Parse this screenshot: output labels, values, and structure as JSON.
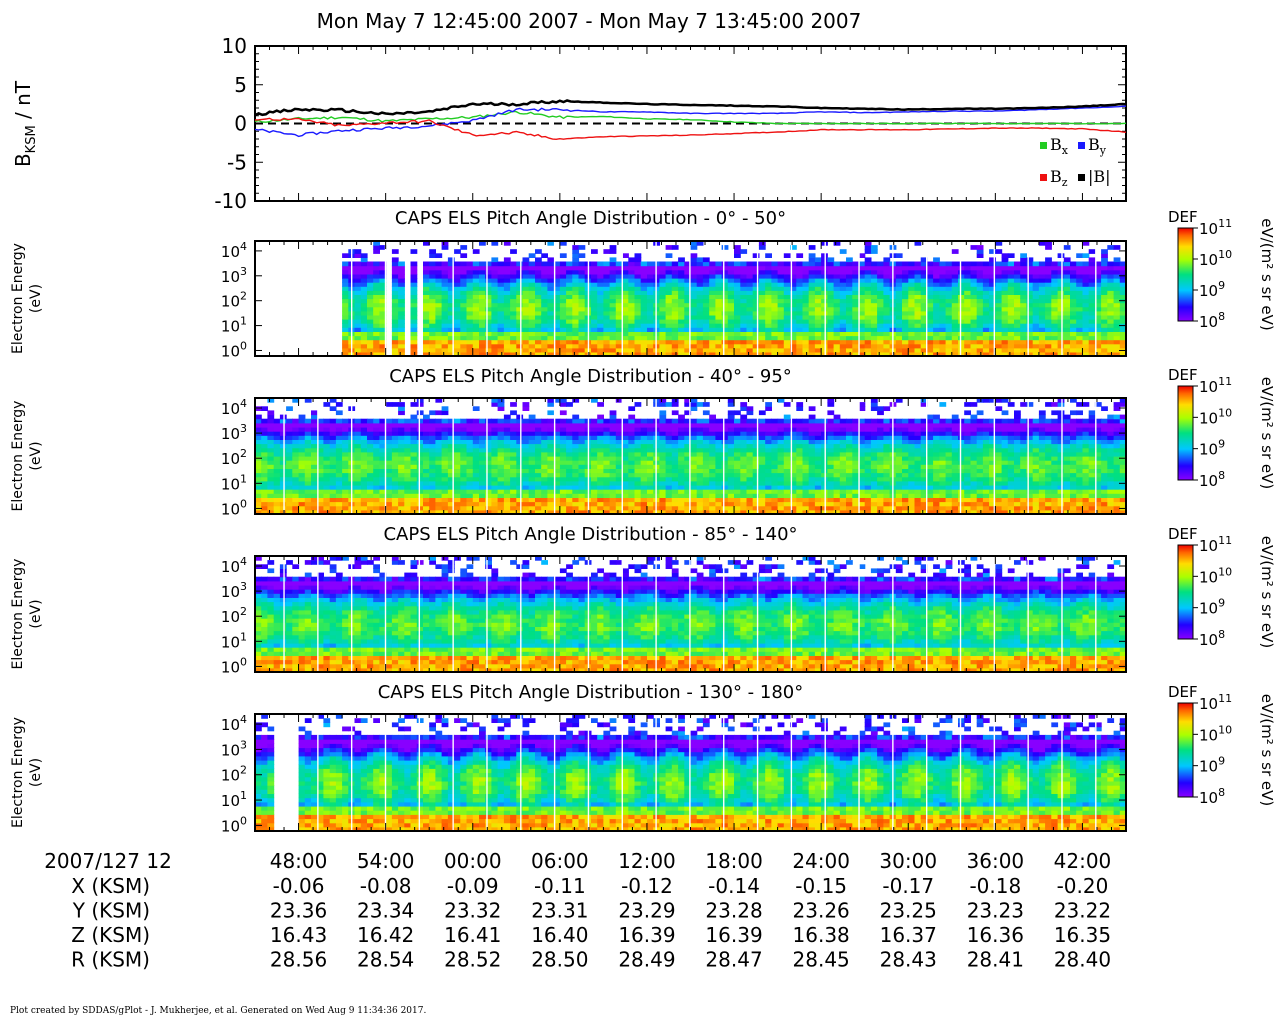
{
  "title": "Mon May 7 12:45:00 2007 - Mon May 7 13:45:00 2007",
  "footer": "Plot created by SDDAS/gPlot - J. Mukherjee, et al.  Generated on Wed Aug 9 11:34:36 2017.",
  "chart_data": [
    {
      "type": "line",
      "ylabel": {
        "main": "B",
        "sub": "KSM",
        "unit": " / nT"
      },
      "ylim": [
        -10,
        10
      ],
      "yticks": [
        "10",
        "5",
        "0",
        "-5",
        "-10"
      ],
      "x_minutes": [
        0,
        3,
        6,
        9,
        12,
        15,
        18,
        21,
        24,
        27,
        30,
        33,
        36,
        39,
        42,
        45,
        48,
        51,
        54,
        57,
        60
      ],
      "series": [
        {
          "name": "Bx",
          "color": "#22cc22",
          "values": [
            0.2,
            0.6,
            0.8,
            0.3,
            0.6,
            0.8,
            1.5,
            0.8,
            0.9,
            0.6,
            0.5,
            0.2,
            0.0,
            0.0,
            0.0,
            0.0,
            0.0,
            0.0,
            0.0,
            0.0,
            0.0
          ]
        },
        {
          "name": "By",
          "color": "#1a1aff",
          "values": [
            -0.8,
            -1.5,
            -0.9,
            -0.6,
            -0.3,
            0.4,
            1.8,
            1.8,
            1.5,
            1.5,
            1.3,
            1.3,
            1.3,
            1.5,
            1.4,
            1.5,
            1.6,
            1.6,
            1.8,
            2.0,
            2.2
          ]
        },
        {
          "name": "Bz",
          "color": "#ee1111",
          "values": [
            0.6,
            0.5,
            -0.3,
            0.1,
            0.3,
            -1.5,
            -1.2,
            -2.0,
            -1.7,
            -1.6,
            -1.5,
            -1.3,
            -1.1,
            -0.8,
            -0.8,
            -0.8,
            -0.7,
            -0.6,
            -0.6,
            -0.7,
            -1.1
          ]
        },
        {
          "name": "|B|",
          "color": "#000000",
          "values": [
            1.2,
            1.8,
            1.7,
            1.2,
            1.5,
            2.5,
            2.5,
            2.9,
            2.7,
            2.5,
            2.4,
            2.3,
            2.2,
            2.0,
            1.9,
            1.8,
            1.9,
            1.9,
            2.0,
            2.2,
            2.5
          ]
        }
      ],
      "legend": [
        {
          "label": "B",
          "sub": "x",
          "color": "#22cc22"
        },
        {
          "label": "B",
          "sub": "y",
          "color": "#1a1aff"
        },
        {
          "label": "B",
          "sub": "z",
          "color": "#ee1111"
        },
        {
          "label": "|B|",
          "sub": "",
          "color": "#000000"
        }
      ],
      "zero_line": "dashed"
    },
    {
      "type": "heatmap",
      "title": "CAPS ELS Pitch Angle Distribution - 0° - 50°",
      "ylabel": [
        "Electron Energy",
        "(eV)"
      ],
      "ylim": [
        0.6,
        25000
      ],
      "yscale": "log",
      "zlabel": "DEF",
      "zunit": "eV/(m² s sr eV)",
      "zlim": [
        100000000.0,
        100000000000.0
      ],
      "profile": "field-aligned"
    },
    {
      "type": "heatmap",
      "title": "CAPS ELS Pitch Angle Distribution - 40° - 95°",
      "ylabel": [
        "Electron Energy",
        "(eV)"
      ],
      "ylim": [
        0.6,
        25000
      ],
      "yscale": "log",
      "zlabel": "DEF",
      "zunit": "eV/(m² s sr eV)",
      "zlim": [
        100000000.0,
        100000000000.0
      ],
      "profile": "perpendicular"
    },
    {
      "type": "heatmap",
      "title": "CAPS ELS Pitch Angle Distribution - 85° - 140°",
      "ylabel": [
        "Electron Energy",
        "(eV)"
      ],
      "ylim": [
        0.6,
        25000
      ],
      "yscale": "log",
      "zlabel": "DEF",
      "zunit": "eV/(m² s sr eV)",
      "zlim": [
        100000000.0,
        100000000000.0
      ],
      "profile": "perpendicular"
    },
    {
      "type": "heatmap",
      "title": "CAPS ELS Pitch Angle Distribution - 130° - 180°",
      "ylabel": [
        "Electron Energy",
        "(eV)"
      ],
      "ylim": [
        0.6,
        25000
      ],
      "yscale": "log",
      "zlabel": "DEF",
      "zunit": "eV/(m² s sr eV)",
      "zlim": [
        100000000.0,
        100000000000.0
      ],
      "profile": "anti-field-aligned"
    }
  ],
  "energy_ticks": [
    {
      "base": "10",
      "exp": "4",
      "value": 10000
    },
    {
      "base": "10",
      "exp": "3",
      "value": 1000
    },
    {
      "base": "10",
      "exp": "2",
      "value": 100
    },
    {
      "base": "10",
      "exp": "1",
      "value": 10
    },
    {
      "base": "10",
      "exp": "0",
      "value": 1
    }
  ],
  "colorbar_ticks": [
    {
      "base": "10",
      "exp": "11",
      "value": 100000000000.0
    },
    {
      "base": "10",
      "exp": "10",
      "value": 10000000000.0
    },
    {
      "base": "10",
      "exp": "9",
      "value": 1000000000.0
    },
    {
      "base": "10",
      "exp": "8",
      "value": 100000000.0
    }
  ],
  "time_axis": {
    "start_label": "2007/127 12",
    "tick_minutes": [
      3,
      9,
      15,
      21,
      27,
      33,
      39,
      45,
      51,
      57
    ],
    "tick_labels": [
      "48:00",
      "54:00",
      "00:00",
      "06:00",
      "12:00",
      "18:00",
      "24:00",
      "30:00",
      "36:00",
      "42:00"
    ],
    "span_minutes": 60
  },
  "ephemeris": [
    {
      "label": "X (KSM)",
      "values": [
        "-0.06",
        "-0.08",
        "-0.09",
        "-0.11",
        "-0.12",
        "-0.14",
        "-0.15",
        "-0.17",
        "-0.18",
        "-0.20"
      ]
    },
    {
      "label": "Y (KSM)",
      "values": [
        "23.36",
        "23.34",
        "23.32",
        "23.31",
        "23.29",
        "23.28",
        "23.26",
        "23.25",
        "23.23",
        "23.22"
      ]
    },
    {
      "label": "Z (KSM)",
      "values": [
        "16.43",
        "16.42",
        "16.41",
        "16.40",
        "16.39",
        "16.39",
        "16.38",
        "16.37",
        "16.36",
        "16.35"
      ]
    },
    {
      "label": "R (KSM)",
      "values": [
        "28.56",
        "28.54",
        "28.52",
        "28.50",
        "28.49",
        "28.47",
        "28.45",
        "28.43",
        "28.41",
        "28.40"
      ]
    }
  ]
}
